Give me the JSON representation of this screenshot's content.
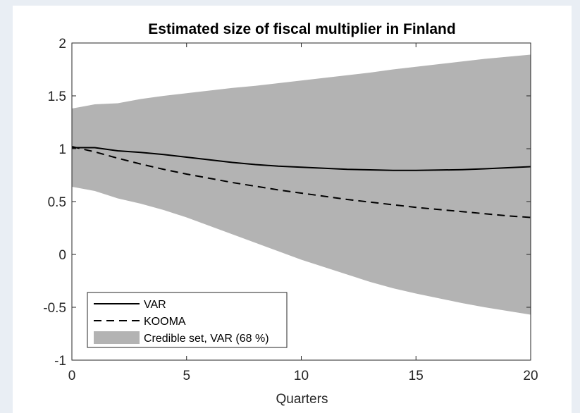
{
  "chart_data": {
    "type": "line",
    "title": "Estimated size of fiscal multiplier in Finland",
    "xlabel": "Quarters",
    "ylabel": "",
    "xlim": [
      0,
      20
    ],
    "ylim": [
      -1,
      2
    ],
    "xticks": [
      0,
      5,
      10,
      15,
      20
    ],
    "xtick_labels": [
      "0",
      "5",
      "10",
      "15",
      "20"
    ],
    "yticks": [
      -1,
      -0.5,
      0,
      0.5,
      1,
      1.5,
      2
    ],
    "ytick_labels": [
      "-1",
      "-0.5",
      "0",
      "0.5",
      "1",
      "1.5",
      "2"
    ],
    "grid": false,
    "legend_position": "bottom-left",
    "x": [
      0,
      1,
      2,
      3,
      4,
      5,
      6,
      7,
      8,
      9,
      10,
      11,
      12,
      13,
      14,
      15,
      16,
      17,
      18,
      19,
      20
    ],
    "series": [
      {
        "name": "VAR",
        "style": "solid",
        "color": "#000000",
        "values": [
          1.01,
          1.01,
          0.98,
          0.965,
          0.945,
          0.92,
          0.895,
          0.87,
          0.85,
          0.835,
          0.825,
          0.815,
          0.805,
          0.8,
          0.795,
          0.795,
          0.798,
          0.802,
          0.81,
          0.82,
          0.83
        ]
      },
      {
        "name": "KOOMA",
        "style": "dashed",
        "color": "#000000",
        "values": [
          1.02,
          0.97,
          0.91,
          0.855,
          0.805,
          0.76,
          0.72,
          0.68,
          0.645,
          0.61,
          0.58,
          0.55,
          0.52,
          0.495,
          0.47,
          0.445,
          0.425,
          0.405,
          0.385,
          0.365,
          0.35
        ]
      }
    ],
    "band": {
      "name": "Credible set, VAR (68 %)",
      "color": "#b3b3b3",
      "lower": [
        0.64,
        0.6,
        0.53,
        0.48,
        0.42,
        0.35,
        0.27,
        0.19,
        0.11,
        0.03,
        -0.05,
        -0.12,
        -0.19,
        -0.26,
        -0.32,
        -0.37,
        -0.415,
        -0.46,
        -0.5,
        -0.535,
        -0.57
      ],
      "upper": [
        1.38,
        1.42,
        1.43,
        1.47,
        1.5,
        1.525,
        1.55,
        1.575,
        1.595,
        1.62,
        1.645,
        1.67,
        1.695,
        1.72,
        1.75,
        1.775,
        1.8,
        1.825,
        1.85,
        1.87,
        1.89
      ]
    }
  }
}
